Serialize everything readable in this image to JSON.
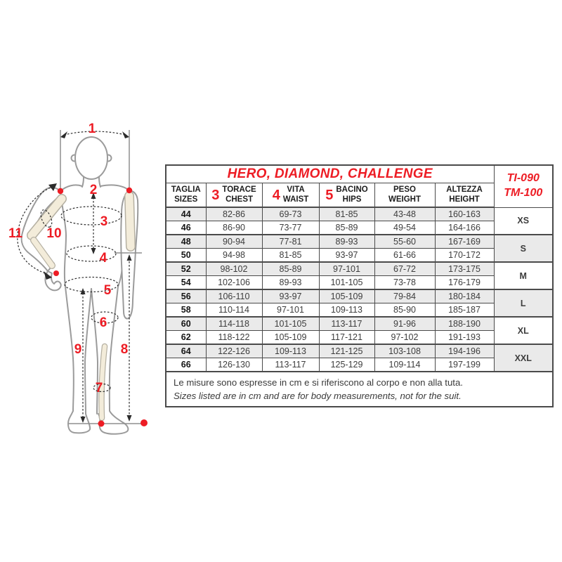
{
  "table": {
    "title": "HERO, DIAMOND, CHALLENGE",
    "models": [
      "TI-090",
      "TM-100"
    ],
    "columns": [
      {
        "num": "",
        "it": "TAGLIA",
        "en": "SIZES"
      },
      {
        "num": "3",
        "it": "TORACE",
        "en": "CHEST"
      },
      {
        "num": "4",
        "it": "VITA",
        "en": "WAIST"
      },
      {
        "num": "5",
        "it": "BACINO",
        "en": "HIPS"
      },
      {
        "num": "",
        "it": "PESO",
        "en": "WEIGHT"
      },
      {
        "num": "",
        "it": "ALTEZZA",
        "en": "HEIGHT"
      }
    ],
    "rows": [
      {
        "size": "44",
        "chest": "82-86",
        "waist": "69-73",
        "hips": "81-85",
        "weight": "43-48",
        "height": "160-163"
      },
      {
        "size": "46",
        "chest": "86-90",
        "waist": "73-77",
        "hips": "85-89",
        "weight": "49-54",
        "height": "164-166"
      },
      {
        "size": "48",
        "chest": "90-94",
        "waist": "77-81",
        "hips": "89-93",
        "weight": "55-60",
        "height": "167-169"
      },
      {
        "size": "50",
        "chest": "94-98",
        "waist": "81-85",
        "hips": "93-97",
        "weight": "61-66",
        "height": "170-172"
      },
      {
        "size": "52",
        "chest": "98-102",
        "waist": "85-89",
        "hips": "97-101",
        "weight": "67-72",
        "height": "173-175"
      },
      {
        "size": "54",
        "chest": "102-106",
        "waist": "89-93",
        "hips": "101-105",
        "weight": "73-78",
        "height": "176-179"
      },
      {
        "size": "56",
        "chest": "106-110",
        "waist": "93-97",
        "hips": "105-109",
        "weight": "79-84",
        "height": "180-184"
      },
      {
        "size": "58",
        "chest": "110-114",
        "waist": "97-101",
        "hips": "109-113",
        "weight": "85-90",
        "height": "185-187"
      },
      {
        "size": "60",
        "chest": "114-118",
        "waist": "101-105",
        "hips": "113-117",
        "weight": "91-96",
        "height": "188-190"
      },
      {
        "size": "62",
        "chest": "118-122",
        "waist": "105-109",
        "hips": "117-121",
        "weight": "97-102",
        "height": "191-193"
      },
      {
        "size": "64",
        "chest": "122-126",
        "waist": "109-113",
        "hips": "121-125",
        "weight": "103-108",
        "height": "194-196"
      },
      {
        "size": "66",
        "chest": "126-130",
        "waist": "113-117",
        "hips": "125-129",
        "weight": "109-114",
        "height": "197-199"
      }
    ],
    "size_groups": [
      "XS",
      "S",
      "M",
      "L",
      "XL",
      "XXL"
    ],
    "note_it": "Le misure sono espresse in cm e si riferiscono al corpo e non alla tuta.",
    "note_en": "Sizes listed are in cm and are for body measurements, not for the suit."
  },
  "figure": {
    "labels": [
      "1",
      "2",
      "3",
      "4",
      "5",
      "6",
      "7",
      "8",
      "9",
      "10",
      "11"
    ]
  },
  "colors": {
    "accent_red": "#ED1C24",
    "row_shade": "#EAEAEA",
    "table_border": "#4A4A4A",
    "body_outline": "#9B9B9B",
    "bone_fill": "#F3ECDA"
  }
}
